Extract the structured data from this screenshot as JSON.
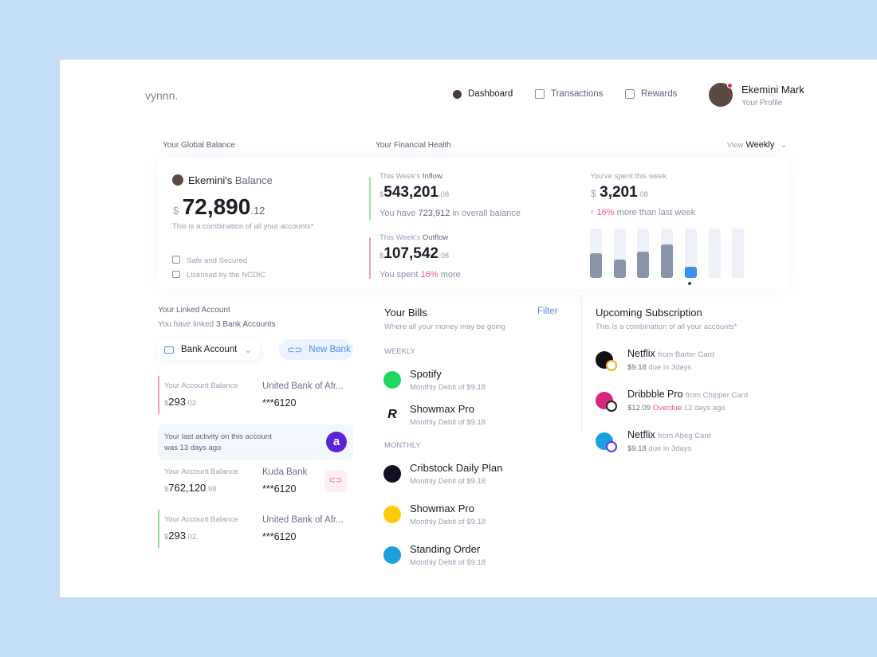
{
  "brand": "vynnn.",
  "nav": [
    {
      "label": "Dashboard",
      "icon": "avatar-icon",
      "active": true
    },
    {
      "label": "Transactions",
      "icon": "home-icon"
    },
    {
      "label": "Rewards",
      "icon": "gift-icon"
    }
  ],
  "profile": {
    "name": "Ekemini Mark",
    "sub": "Your Profile"
  },
  "global": {
    "section": "Your Global Balance",
    "owner": "Ekemini's",
    "owner_suffix": "Balance",
    "currency": "$",
    "amount": "72,890",
    "cents": ".12",
    "note": "This is a combination of all your accounts*",
    "features": [
      "Safe and Secured",
      "Licensed by the NCDIC"
    ]
  },
  "health": {
    "section": "Your Financial Health",
    "view_label": "View",
    "view_value": "Weekly",
    "inflow": {
      "label_pre": "This Week's",
      "label": "Inflow",
      "currency": "$",
      "amount": "543,201",
      "cents": ".08",
      "note_pre": "You have",
      "note_val": "723,912",
      "note_post": "in overall balance"
    },
    "outflow": {
      "label_pre": "This Week's",
      "label": "Outflow",
      "currency": "$",
      "amount": "107,542",
      "cents": ".08",
      "note_pre": "You spent",
      "note_val": "16%",
      "note_post": "more"
    },
    "spent": {
      "label": "You've spent this week",
      "currency": "$",
      "amount": "3,201",
      "cents": ".08",
      "change": "16%",
      "change_post": "more than last week"
    },
    "bars": [
      0.5,
      0.37,
      0.53,
      0.68,
      0.22,
      0,
      0
    ],
    "active_bar": 4
  },
  "linked": {
    "title": "Your Linked Account",
    "sub_pre": "You have linked",
    "sub_val": "3 Bank Accounts",
    "dropdown": "Bank Account",
    "new_bank": "New Bank",
    "accounts": [
      {
        "label": "Your Account Balance",
        "currency": "$",
        "amount": "293",
        "cents": ".02",
        "bank": "United Bank of Afr...",
        "number": "***6120",
        "accent": "#f4a3b4"
      },
      {
        "label": "Your Account Balance",
        "currency": "$",
        "amount": "762,120",
        "cents": ".98",
        "bank": "Kuda Bank",
        "number": "***6120",
        "accent": "#ffffff"
      },
      {
        "label": "Your Account Balance",
        "currency": "$",
        "amount": "293",
        "cents": ".02.",
        "bank": "United Bank of Afr...",
        "number": "***6120",
        "accent": "#8fe0a0"
      }
    ],
    "activity": "Your last activity on this account",
    "activity2": "was 13 days ago"
  },
  "bills": {
    "title": "Your Bills",
    "filter": "Filter",
    "sub": "Where all your money may be going",
    "groups": [
      {
        "name": "WEEKLY",
        "items": [
          {
            "name": "Spotify",
            "sub": "Monthly Debit of $9.18",
            "color": "#1ed760"
          },
          {
            "name": "Showmax Pro",
            "sub": "Monthly Debit of $9.18",
            "color": "#ffffff"
          }
        ]
      },
      {
        "name": "MONTHLY",
        "items": [
          {
            "name": "Cribstock Daily Plan",
            "sub": "Monthly Debit of $9.18",
            "color": "#111122"
          },
          {
            "name": "Showmax Pro",
            "sub": "Monthly Debit of $9.18",
            "color": "#ffcb05"
          },
          {
            "name": "Standing Order",
            "sub": "Monthly Debit of $9.18",
            "color": "#1ba0dc"
          }
        ]
      }
    ]
  },
  "subs": {
    "title": "Upcoming Subscription",
    "sub": "This is a combination of all your accounts*",
    "items": [
      {
        "name": "Netflix",
        "from": "from Barter Card",
        "amount": "$9.18",
        "status": "",
        "due": "due in 3days",
        "color": "#111"
      },
      {
        "name": "Dribbble Pro",
        "from": "from Chipper Card",
        "amount": "$12.09",
        "status": "Overdue",
        "due": "12 days ago",
        "color": "#d6287a"
      },
      {
        "name": "Netflix",
        "from": "from Abeg Card",
        "amount": "$9.18",
        "status": "",
        "due": "due in 3days",
        "color": "#1ba0dc"
      }
    ]
  }
}
